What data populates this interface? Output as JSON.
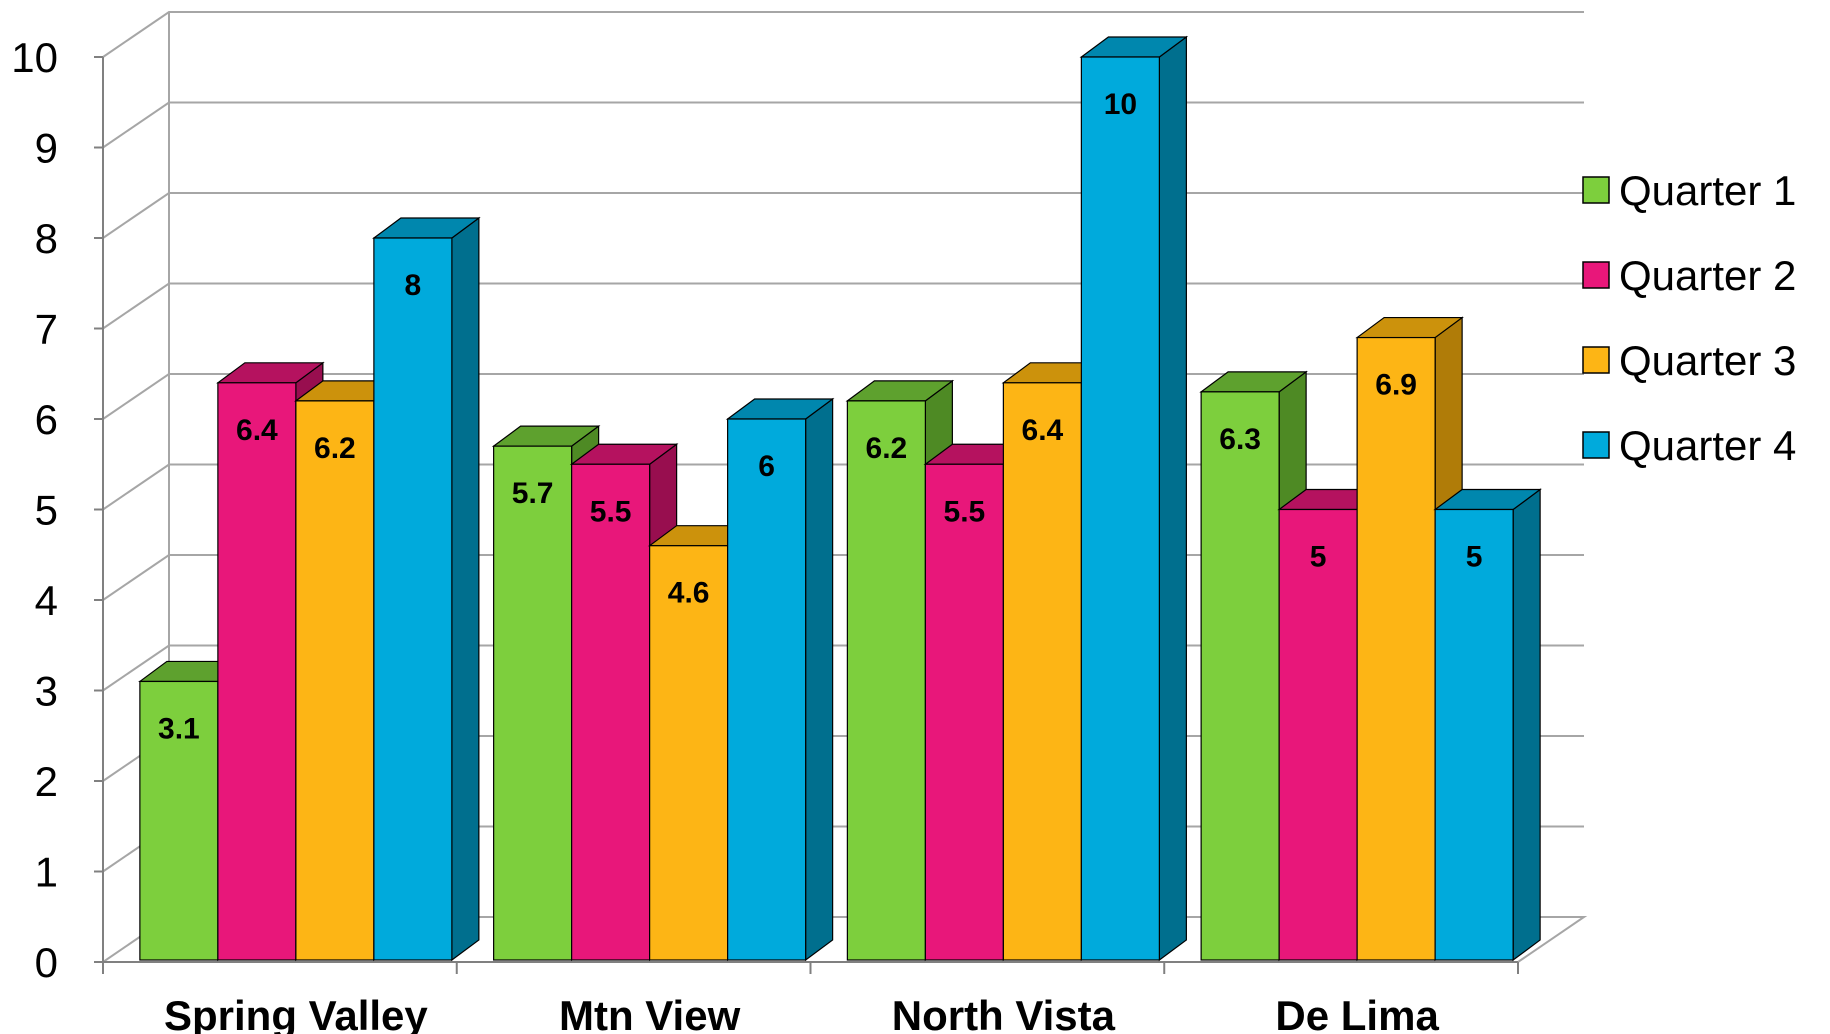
{
  "chart_data": {
    "type": "bar",
    "style": "3d-clustered-column",
    "categories": [
      "Spring Valley",
      "Mtn View",
      "North Vista",
      "De Lima"
    ],
    "series": [
      {
        "name": "Quarter 1",
        "values": [
          3.1,
          5.7,
          6.2,
          6.3
        ],
        "color": "#7dcf3d",
        "side": "#4e8a24",
        "top": "#5ea12e"
      },
      {
        "name": "Quarter 2",
        "values": [
          6.4,
          5.5,
          5.5,
          5.0
        ],
        "color": "#e8177a",
        "side": "#980e4f",
        "top": "#b5125f"
      },
      {
        "name": "Quarter 3",
        "values": [
          6.2,
          4.6,
          6.4,
          6.9
        ],
        "color": "#fdb515",
        "side": "#b07c08",
        "top": "#cc920c"
      },
      {
        "name": "Quarter 4",
        "values": [
          8,
          6,
          10,
          5
        ],
        "color": "#00aadc",
        "side": "#006f8e",
        "top": "#0087ae"
      }
    ],
    "data_labels": [
      [
        "3.1",
        "5.7",
        "6.2",
        "6.3"
      ],
      [
        "6.4",
        "5.5",
        "5.5",
        "5"
      ],
      [
        "6.2",
        "4.6",
        "6.4",
        "6.9"
      ],
      [
        "8",
        "6",
        "10",
        "5"
      ]
    ],
    "y_ticks": [
      "0",
      "1",
      "2",
      "3",
      "4",
      "5",
      "6",
      "7",
      "8",
      "9",
      "10"
    ],
    "ylim": [
      0,
      10
    ],
    "grid": true,
    "legend_position": "right",
    "title": "",
    "xlabel": "",
    "ylabel": ""
  }
}
